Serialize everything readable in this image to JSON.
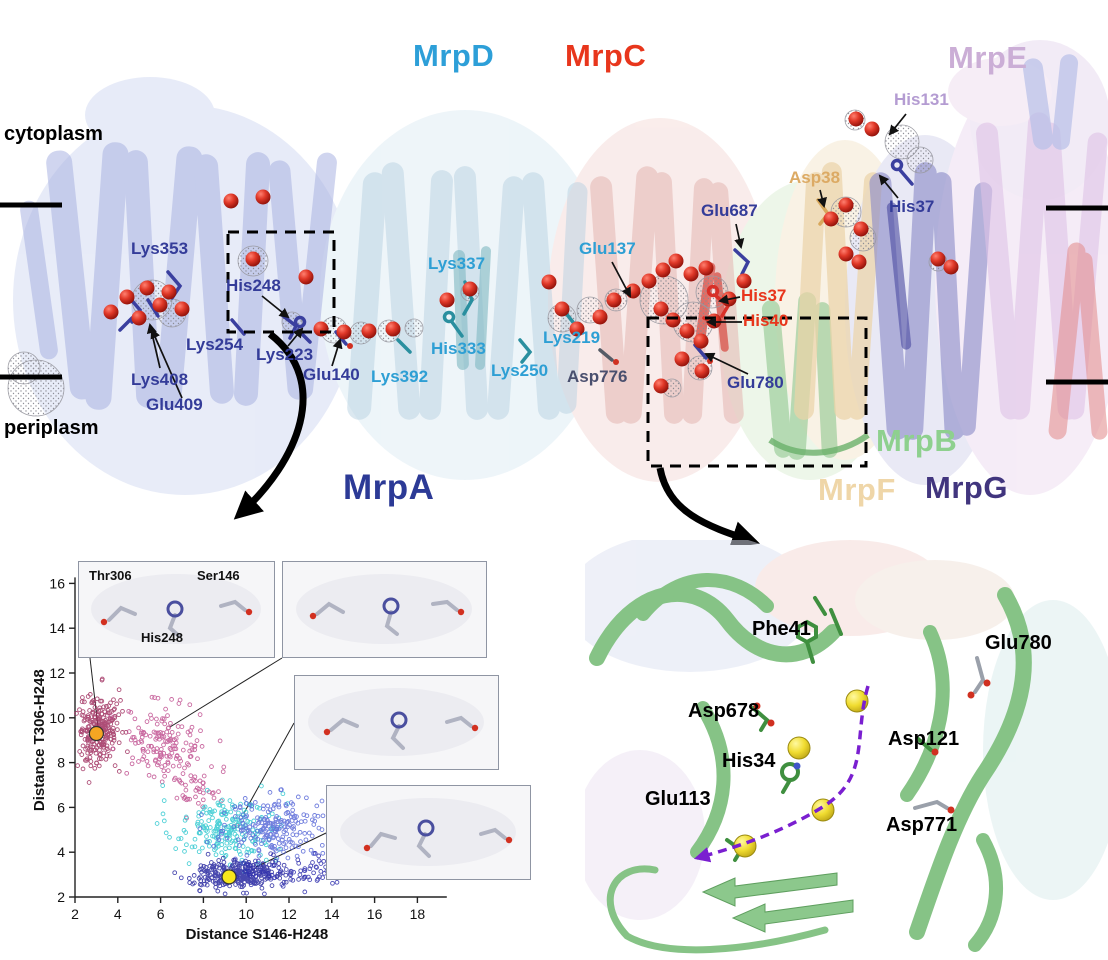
{
  "top_panel": {
    "compartments": {
      "top": "cytoplasm",
      "bottom": "periplasm"
    },
    "subunits": [
      {
        "label": "MrpD",
        "color": "#2d9fd8"
      },
      {
        "label": "MrpC",
        "color": "#e8361c"
      },
      {
        "label": "MrpE",
        "color": "#cbaed6"
      },
      {
        "label": "MrpA",
        "color": "#2c3a96"
      },
      {
        "label": "MrpB",
        "color": "#8ed08e"
      },
      {
        "label": "MrpF",
        "color": "#efd6a8"
      },
      {
        "label": "MrpG",
        "color": "#41357e"
      }
    ],
    "residues": [
      {
        "label": "Lys353",
        "color": "#343c99"
      },
      {
        "label": "His248",
        "color": "#343c99"
      },
      {
        "label": "Lys254",
        "color": "#343c99"
      },
      {
        "label": "Lys223",
        "color": "#343c99"
      },
      {
        "label": "Lys408",
        "color": "#343c99"
      },
      {
        "label": "Glu409",
        "color": "#343c99"
      },
      {
        "label": "Glu140",
        "color": "#343c99"
      },
      {
        "label": "Lys392",
        "color": "#2e9fd4"
      },
      {
        "label": "His333",
        "color": "#2e9fd4"
      },
      {
        "label": "Lys337",
        "color": "#2e9fd4"
      },
      {
        "label": "Lys250",
        "color": "#2e9fd4"
      },
      {
        "label": "Lys219",
        "color": "#2e9fd4"
      },
      {
        "label": "Glu137",
        "color": "#2e9fd4"
      },
      {
        "label": "Asp776",
        "color": "#4a4f6e"
      },
      {
        "label": "Glu687",
        "color": "#343c99"
      },
      {
        "label": "His37",
        "color": "#e8361c"
      },
      {
        "label": "His40",
        "color": "#e8361c"
      },
      {
        "label": "Glu780",
        "color": "#343c99"
      },
      {
        "label": "Asp38",
        "color": "#dcaa64"
      },
      {
        "label": "His131",
        "color": "#b49cd2"
      },
      {
        "label": "His37",
        "color": "#343c99"
      }
    ]
  },
  "insets": {
    "panel1": {
      "labels": {
        "thr": "Thr306",
        "ser": "Ser146",
        "his": "His248"
      }
    }
  },
  "zoom_panel": {
    "residues": [
      "Phe41",
      "Glu780",
      "Asp678",
      "Asp121",
      "His34",
      "Glu113",
      "Asp771"
    ],
    "label_color": "#000000",
    "sphere_color": "#f2e234",
    "arrow_color": "#7a1fd0",
    "ribbon_color": "#86c386"
  },
  "chart_data": {
    "type": "scatter",
    "title": "",
    "xlabel": "Distance S146-H248",
    "ylabel": "Distance T306-H248",
    "xlim": [
      2,
      19
    ],
    "ylim": [
      2,
      16
    ],
    "xticks": [
      2,
      4,
      6,
      8,
      10,
      12,
      14,
      16,
      18
    ],
    "yticks": [
      2,
      4,
      6,
      8,
      10,
      12,
      14,
      16
    ],
    "grid": false,
    "legend": false,
    "series": [
      {
        "name": "crimson-cluster",
        "color": "#a03060",
        "marker": "open-circle",
        "center": [
          3.1,
          9.5
        ],
        "spread": [
          0.55,
          0.75
        ],
        "n": 260
      },
      {
        "name": "pink-cluster",
        "color": "#c05090",
        "marker": "open-circle",
        "center": [
          6.2,
          8.9
        ],
        "spread": [
          1.0,
          0.9
        ],
        "n": 160
      },
      {
        "name": "pink-trail",
        "color": "#c05090",
        "marker": "open-circle",
        "center": [
          7.6,
          6.9
        ],
        "spread": [
          0.7,
          0.7
        ],
        "n": 40
      },
      {
        "name": "cyan-cluster",
        "color": "#30c8d0",
        "marker": "open-circle",
        "center": [
          9.0,
          5.0
        ],
        "spread": [
          1.1,
          0.8
        ],
        "n": 220
      },
      {
        "name": "blue-cluster",
        "color": "#5868d8",
        "marker": "open-circle",
        "center": [
          11.3,
          5.0
        ],
        "spread": [
          1.2,
          0.75
        ],
        "n": 220
      },
      {
        "name": "navy-cluster",
        "color": "#2828a0",
        "marker": "open-circle",
        "center": [
          9.6,
          3.0
        ],
        "spread": [
          1.0,
          0.3
        ],
        "n": 300
      },
      {
        "name": "navy-trail",
        "color": "#2f2fae",
        "marker": "open-circle",
        "center": [
          12.0,
          3.1
        ],
        "spread": [
          1.3,
          0.35
        ],
        "n": 80
      }
    ],
    "markers": [
      {
        "name": "orange-state-marker",
        "color": "#f5a623",
        "x": 3.0,
        "y": 9.3,
        "r": 7
      },
      {
        "name": "yellow-state-marker",
        "color": "#f8e71c",
        "x": 9.2,
        "y": 2.9,
        "r": 7
      }
    ]
  }
}
